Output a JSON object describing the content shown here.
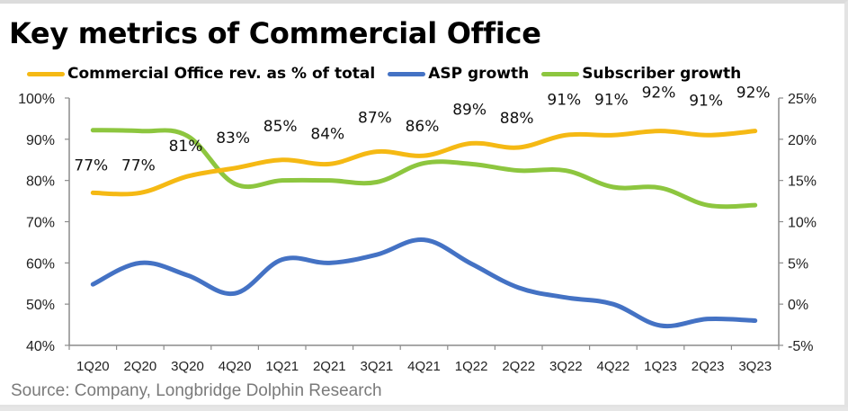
{
  "chart_data": {
    "type": "line",
    "title": "Key metrics of Commercial Office",
    "categories": [
      "1Q20",
      "2Q20",
      "3Q20",
      "4Q20",
      "1Q21",
      "2Q21",
      "3Q21",
      "4Q21",
      "1Q22",
      "2Q22",
      "3Q22",
      "4Q22",
      "1Q23",
      "2Q23",
      "3Q23"
    ],
    "series": [
      {
        "name": "Commercial Office rev. as % of total",
        "axis": "left",
        "color": "#F5B914",
        "values": [
          77,
          77,
          81,
          83,
          85,
          84,
          87,
          86,
          89,
          88,
          91,
          91,
          92,
          91,
          92
        ],
        "data_labels": [
          "77%",
          "77%",
          "81%",
          "83%",
          "85%",
          "84%",
          "87%",
          "86%",
          "89%",
          "88%",
          "91%",
          "91%",
          "92%",
          "91%",
          "92%"
        ]
      },
      {
        "name": "ASP growth",
        "axis": "right",
        "color": "#4472C4",
        "values": [
          2.4,
          5.0,
          3.5,
          1.3,
          5.4,
          5.0,
          6.0,
          7.8,
          4.9,
          2.0,
          0.8,
          0.0,
          -2.6,
          -1.8,
          -2.0
        ]
      },
      {
        "name": "Subscriber growth",
        "axis": "right",
        "color": "#8DC63F",
        "values": [
          21.1,
          21.0,
          20.4,
          14.6,
          15.0,
          15.0,
          14.8,
          17.1,
          17.0,
          16.2,
          16.2,
          14.2,
          14.1,
          12.0,
          12.0
        ]
      }
    ],
    "y_left": {
      "range": [
        40,
        100
      ],
      "ticks": [
        "40%",
        "50%",
        "60%",
        "70%",
        "80%",
        "90%",
        "100%"
      ]
    },
    "y_right": {
      "range": [
        -5,
        25
      ],
      "ticks": [
        "-5%",
        "0%",
        "5%",
        "10%",
        "15%",
        "20%",
        "25%"
      ]
    },
    "xlabel": "",
    "ylabel": "",
    "grid": false,
    "legend_position": "top",
    "source": "Source:  Company, Longbridge Dolphin Research"
  }
}
